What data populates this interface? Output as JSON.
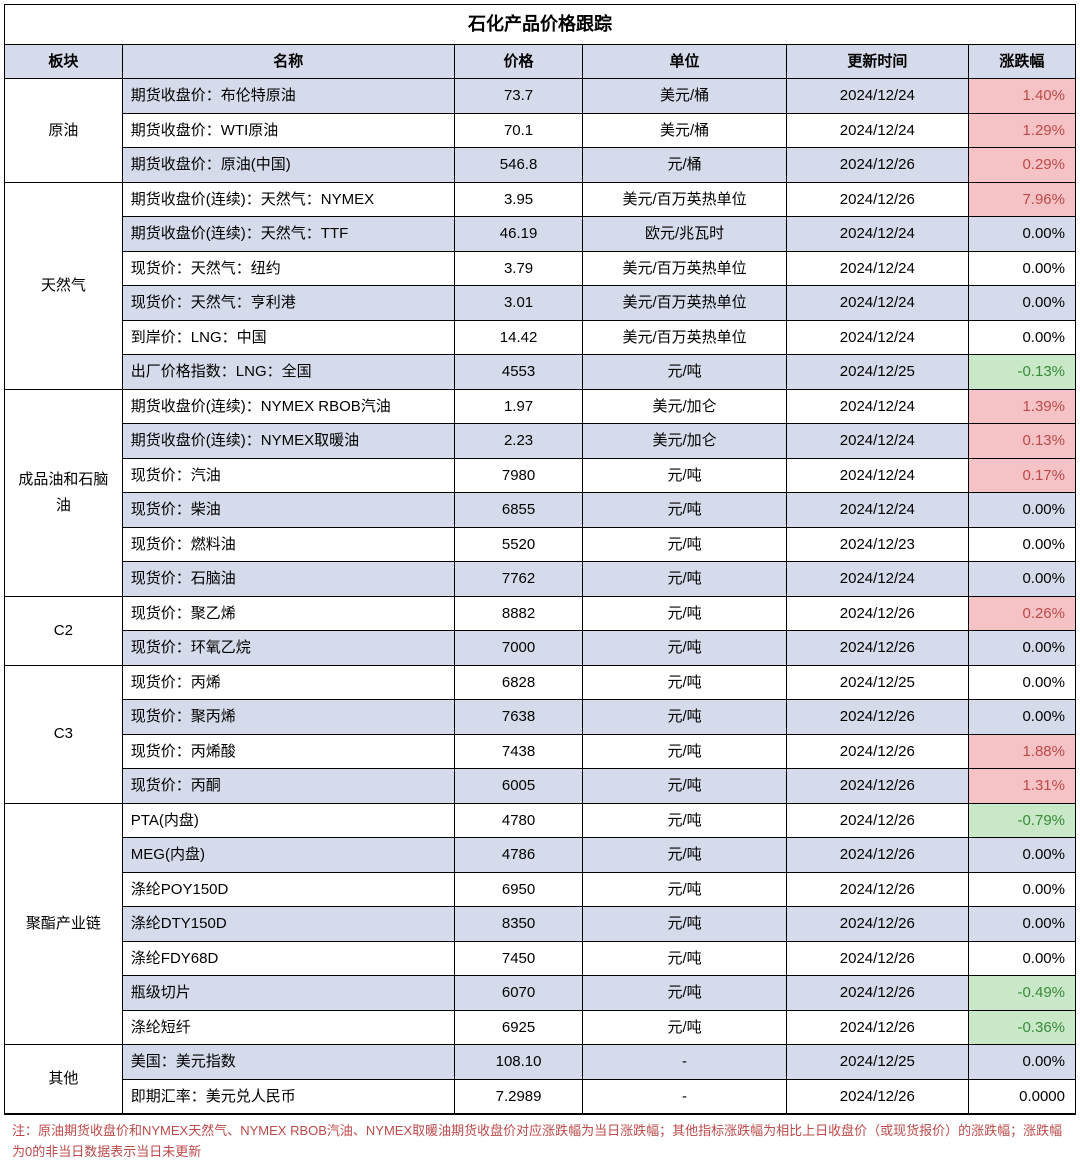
{
  "title": "石化产品价格跟踪",
  "columns": [
    "板块",
    "名称",
    "价格",
    "单位",
    "更新时间",
    "涨跌幅"
  ],
  "colors": {
    "header_bg": "#d6dbeb",
    "row_odd_bg": "#d6dbeb",
    "row_even_bg": "#ffffff",
    "positive_bg": "#f5c3c6",
    "positive_text": "#bd4a4a",
    "negative_bg": "#c8e8c8",
    "negative_text": "#3a8a3a",
    "border": "#000000",
    "footnote_text": "#bd4a4a"
  },
  "sections": [
    {
      "sector": "原油",
      "rows": [
        {
          "name": "期货收盘价：布伦特原油",
          "price": "73.7",
          "unit": "美元/桶",
          "date": "2024/12/24",
          "change": "1.40%",
          "dir": "pos"
        },
        {
          "name": "期货收盘价：WTI原油",
          "price": "70.1",
          "unit": "美元/桶",
          "date": "2024/12/24",
          "change": "1.29%",
          "dir": "pos"
        },
        {
          "name": "期货收盘价：原油(中国)",
          "price": "546.8",
          "unit": "元/桶",
          "date": "2024/12/26",
          "change": "0.29%",
          "dir": "pos"
        }
      ]
    },
    {
      "sector": "天然气",
      "rows": [
        {
          "name": "期货收盘价(连续)：天然气：NYMEX",
          "price": "3.95",
          "unit": "美元/百万英热单位",
          "date": "2024/12/26",
          "change": "7.96%",
          "dir": "pos"
        },
        {
          "name": "期货收盘价(连续)：天然气：TTF",
          "price": "46.19",
          "unit": "欧元/兆瓦时",
          "date": "2024/12/24",
          "change": "0.00%",
          "dir": "zero"
        },
        {
          "name": "现货价：天然气：纽约",
          "price": "3.79",
          "unit": "美元/百万英热单位",
          "date": "2024/12/24",
          "change": "0.00%",
          "dir": "zero"
        },
        {
          "name": "现货价：天然气：亨利港",
          "price": "3.01",
          "unit": "美元/百万英热单位",
          "date": "2024/12/24",
          "change": "0.00%",
          "dir": "zero"
        },
        {
          "name": "到岸价：LNG：中国",
          "price": "14.42",
          "unit": "美元/百万英热单位",
          "date": "2024/12/24",
          "change": "0.00%",
          "dir": "zero"
        },
        {
          "name": "出厂价格指数：LNG：全国",
          "price": "4553",
          "unit": "元/吨",
          "date": "2024/12/25",
          "change": "-0.13%",
          "dir": "neg"
        }
      ]
    },
    {
      "sector": "成品油和石脑油",
      "rows": [
        {
          "name": "期货收盘价(连续)：NYMEX RBOB汽油",
          "price": "1.97",
          "unit": "美元/加仑",
          "date": "2024/12/24",
          "change": "1.39%",
          "dir": "pos"
        },
        {
          "name": "期货收盘价(连续)：NYMEX取暖油",
          "price": "2.23",
          "unit": "美元/加仑",
          "date": "2024/12/24",
          "change": "0.13%",
          "dir": "pos"
        },
        {
          "name": "现货价：汽油",
          "price": "7980",
          "unit": "元/吨",
          "date": "2024/12/24",
          "change": "0.17%",
          "dir": "pos"
        },
        {
          "name": "现货价：柴油",
          "price": "6855",
          "unit": "元/吨",
          "date": "2024/12/24",
          "change": "0.00%",
          "dir": "zero"
        },
        {
          "name": "现货价：燃料油",
          "price": "5520",
          "unit": "元/吨",
          "date": "2024/12/23",
          "change": "0.00%",
          "dir": "zero"
        },
        {
          "name": "现货价：石脑油",
          "price": "7762",
          "unit": "元/吨",
          "date": "2024/12/24",
          "change": "0.00%",
          "dir": "zero"
        }
      ]
    },
    {
      "sector": "C2",
      "rows": [
        {
          "name": "现货价：聚乙烯",
          "price": "8882",
          "unit": "元/吨",
          "date": "2024/12/26",
          "change": "0.26%",
          "dir": "pos"
        },
        {
          "name": "现货价：环氧乙烷",
          "price": "7000",
          "unit": "元/吨",
          "date": "2024/12/26",
          "change": "0.00%",
          "dir": "zero"
        }
      ]
    },
    {
      "sector": "C3",
      "rows": [
        {
          "name": "现货价：丙烯",
          "price": "6828",
          "unit": "元/吨",
          "date": "2024/12/25",
          "change": "0.00%",
          "dir": "zero"
        },
        {
          "name": "现货价：聚丙烯",
          "price": "7638",
          "unit": "元/吨",
          "date": "2024/12/26",
          "change": "0.00%",
          "dir": "zero"
        },
        {
          "name": "现货价：丙烯酸",
          "price": "7438",
          "unit": "元/吨",
          "date": "2024/12/26",
          "change": "1.88%",
          "dir": "pos"
        },
        {
          "name": "现货价：丙酮",
          "price": "6005",
          "unit": "元/吨",
          "date": "2024/12/26",
          "change": "1.31%",
          "dir": "pos"
        }
      ]
    },
    {
      "sector": "聚酯产业链",
      "rows": [
        {
          "name": "PTA(内盘)",
          "price": "4780",
          "unit": "元/吨",
          "date": "2024/12/26",
          "change": "-0.79%",
          "dir": "neg"
        },
        {
          "name": "MEG(内盘)",
          "price": "4786",
          "unit": "元/吨",
          "date": "2024/12/26",
          "change": "0.00%",
          "dir": "zero"
        },
        {
          "name": "涤纶POY150D",
          "price": "6950",
          "unit": "元/吨",
          "date": "2024/12/26",
          "change": "0.00%",
          "dir": "zero"
        },
        {
          "name": "涤纶DTY150D",
          "price": "8350",
          "unit": "元/吨",
          "date": "2024/12/26",
          "change": "0.00%",
          "dir": "zero"
        },
        {
          "name": "涤纶FDY68D",
          "price": "7450",
          "unit": "元/吨",
          "date": "2024/12/26",
          "change": "0.00%",
          "dir": "zero"
        },
        {
          "name": "瓶级切片",
          "price": "6070",
          "unit": "元/吨",
          "date": "2024/12/26",
          "change": "-0.49%",
          "dir": "neg"
        },
        {
          "name": "涤纶短纤",
          "price": "6925",
          "unit": "元/吨",
          "date": "2024/12/26",
          "change": "-0.36%",
          "dir": "neg"
        }
      ]
    },
    {
      "sector": "其他",
      "rows": [
        {
          "name": "美国：美元指数",
          "price": "108.10",
          "unit": "-",
          "date": "2024/12/25",
          "change": "0.00%",
          "dir": "zero"
        },
        {
          "name": "即期汇率：美元兑人民币",
          "price": "7.2989",
          "unit": "-",
          "date": "2024/12/26",
          "change": "0.0000",
          "dir": "zero"
        }
      ]
    }
  ],
  "footnote": "注：原油期货收盘价和NYMEX天然气、NYMEX RBOB汽油、NYMEX取暖油期货收盘价对应涨跌幅为当日涨跌幅；其他指标涨跌幅为相比上日收盘价（或现货报价）的涨跌幅；涨跌幅为0的非当日数据表示当日未更新"
}
